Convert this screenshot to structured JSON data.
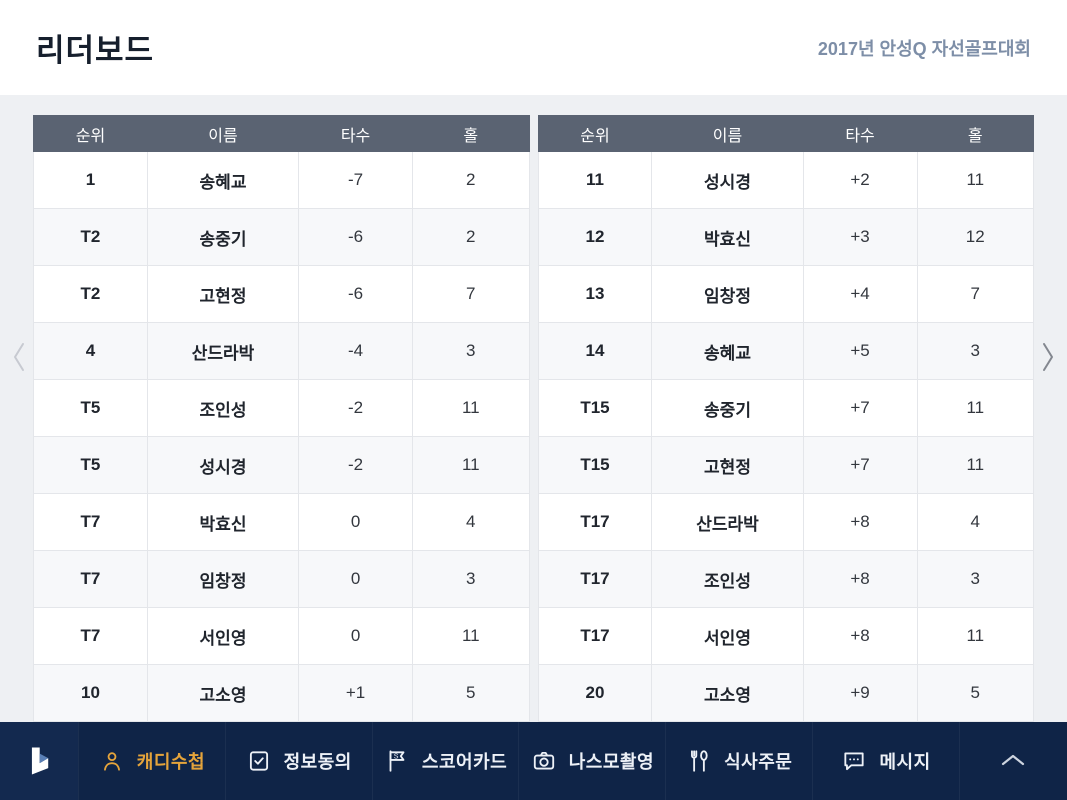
{
  "header": {
    "title": "리더보드",
    "subtitle": "2017년 안성Q 자선골프대회"
  },
  "table_headers": {
    "rank": "순위",
    "name": "이름",
    "strokes": "타수",
    "hole": "홀"
  },
  "tables": {
    "left": {
      "rows": [
        {
          "rank": "1",
          "name": "송혜교",
          "strokes": "-7",
          "hole": "2"
        },
        {
          "rank": "T2",
          "name": "송중기",
          "strokes": "-6",
          "hole": "2"
        },
        {
          "rank": "T2",
          "name": "고현정",
          "strokes": "-6",
          "hole": "7"
        },
        {
          "rank": "4",
          "name": "산드라박",
          "strokes": "-4",
          "hole": "3"
        },
        {
          "rank": "T5",
          "name": "조인성",
          "strokes": "-2",
          "hole": "11"
        },
        {
          "rank": "T5",
          "name": "성시경",
          "strokes": "-2",
          "hole": "11"
        },
        {
          "rank": "T7",
          "name": "박효신",
          "strokes": "0",
          "hole": "4"
        },
        {
          "rank": "T7",
          "name": "임창정",
          "strokes": "0",
          "hole": "3"
        },
        {
          "rank": "T7",
          "name": "서인영",
          "strokes": "0",
          "hole": "11"
        },
        {
          "rank": "10",
          "name": "고소영",
          "strokes": "+1",
          "hole": "5"
        }
      ]
    },
    "right": {
      "rows": [
        {
          "rank": "11",
          "name": "성시경",
          "strokes": "+2",
          "hole": "11"
        },
        {
          "rank": "12",
          "name": "박효신",
          "strokes": "+3",
          "hole": "12"
        },
        {
          "rank": "13",
          "name": "임창정",
          "strokes": "+4",
          "hole": "7"
        },
        {
          "rank": "14",
          "name": "송혜교",
          "strokes": "+5",
          "hole": "3"
        },
        {
          "rank": "T15",
          "name": "송중기",
          "strokes": "+7",
          "hole": "11"
        },
        {
          "rank": "T15",
          "name": "고현정",
          "strokes": "+7",
          "hole": "11"
        },
        {
          "rank": "T17",
          "name": "산드라박",
          "strokes": "+8",
          "hole": "4"
        },
        {
          "rank": "T17",
          "name": "조인성",
          "strokes": "+8",
          "hole": "3"
        },
        {
          "rank": "T17",
          "name": "서인영",
          "strokes": "+8",
          "hole": "11"
        },
        {
          "rank": "20",
          "name": "고소영",
          "strokes": "+9",
          "hole": "5"
        }
      ]
    }
  },
  "nav": {
    "items": [
      {
        "label": "캐디수첩",
        "icon": "caddy-person-icon",
        "active": true
      },
      {
        "label": "정보동의",
        "icon": "consent-check-icon",
        "active": false
      },
      {
        "label": "스코어카드",
        "icon": "scorecard-flag-icon",
        "active": false
      },
      {
        "label": "나스모촬영",
        "icon": "camera-icon",
        "active": false
      },
      {
        "label": "식사주문",
        "icon": "meal-utensils-icon",
        "active": false
      },
      {
        "label": "메시지",
        "icon": "message-bubble-icon",
        "active": false
      }
    ]
  },
  "icons": {
    "pager_prev": "chevron-left",
    "pager_next": "chevron-right",
    "navbar_collapse": "chevron-up",
    "logo": "app-logo"
  },
  "colors": {
    "accent_gold": "#e5a43b",
    "nav_bg": "#0f2447",
    "table_header_bg": "#5a6372",
    "page_bg": "#eef0f3",
    "subtitle_blue": "#7d8ea7"
  }
}
